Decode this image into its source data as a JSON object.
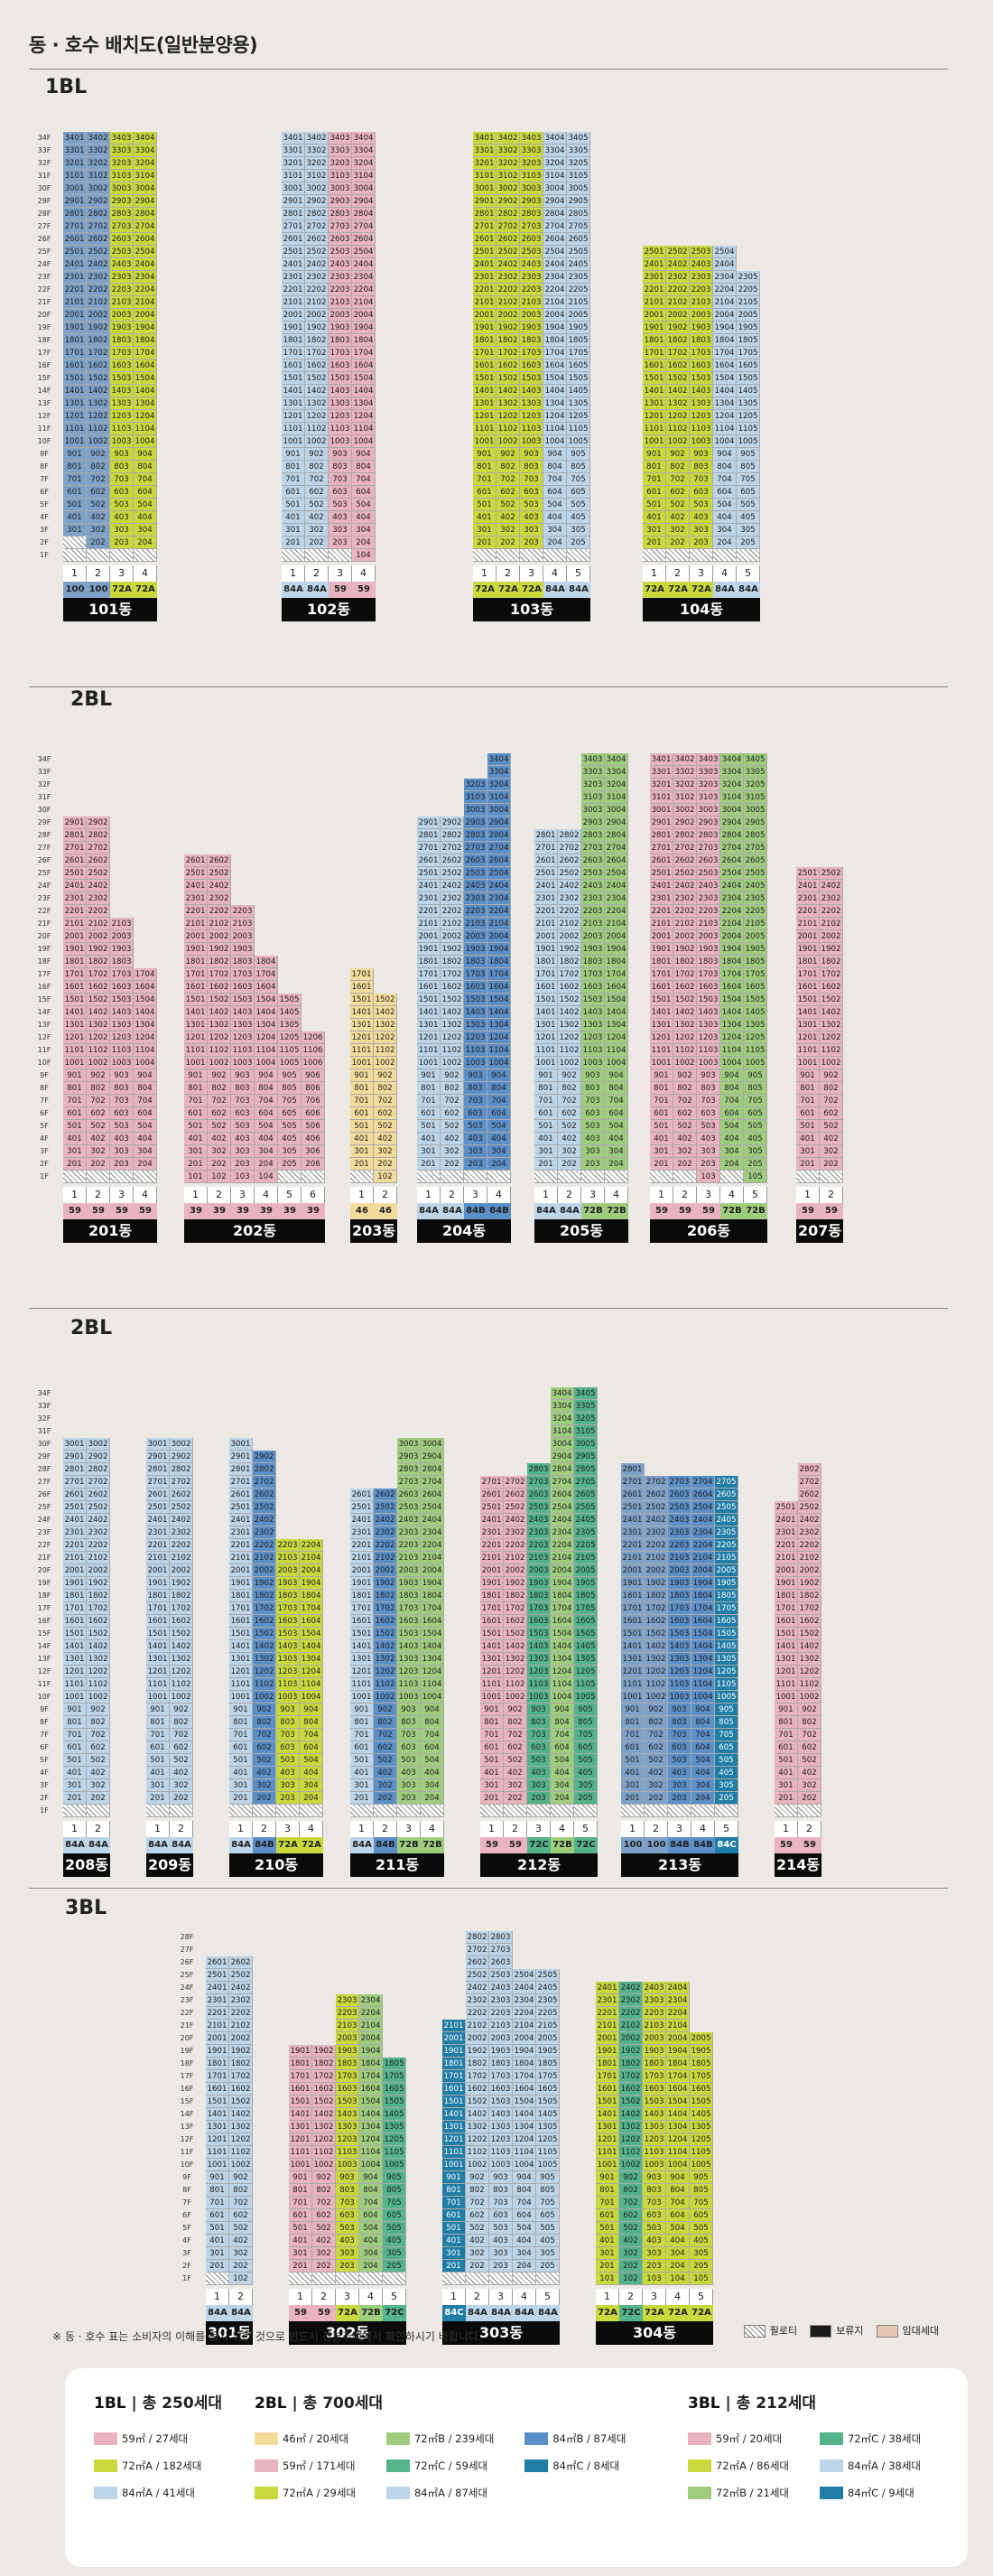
{
  "title": "동 · 호수 배치도(일반분양용)",
  "sections": [
    {
      "label": "1BL",
      "floors": 34,
      "buildings": [
        {
          "name": "101동",
          "lines": [
            "1",
            "2",
            "3",
            "4"
          ],
          "types": [
            "100",
            "100",
            "72A",
            "72A"
          ],
          "tops": [
            34,
            34,
            34,
            34
          ],
          "bottoms": [
            3,
            2,
            2,
            2
          ]
        },
        {
          "name": "102동",
          "lines": [
            "1",
            "2",
            "3",
            "4"
          ],
          "types": [
            "84A",
            "84A",
            "59",
            "59"
          ],
          "tops": [
            34,
            34,
            34,
            34
          ],
          "bottoms": [
            2,
            2,
            2,
            1
          ]
        },
        {
          "name": "103동",
          "lines": [
            "1",
            "2",
            "3",
            "4",
            "5"
          ],
          "types": [
            "72A",
            "72A",
            "72A",
            "84A",
            "84A"
          ],
          "tops": [
            34,
            34,
            34,
            34,
            34
          ],
          "bottoms": [
            2,
            2,
            2,
            2,
            2
          ]
        },
        {
          "name": "104동",
          "lines": [
            "1",
            "2",
            "3",
            "4",
            "5"
          ],
          "types": [
            "72A",
            "72A",
            "72A",
            "84A",
            "84A"
          ],
          "tops": [
            25,
            25,
            25,
            25,
            23
          ],
          "bottoms": [
            2,
            2,
            2,
            2,
            2
          ]
        }
      ]
    },
    {
      "label": "2BL",
      "floors": 34,
      "buildings": [
        {
          "name": "201동",
          "lines": [
            "1",
            "2",
            "3",
            "4"
          ],
          "types": [
            "59",
            "59",
            "59",
            "59"
          ],
          "tops": [
            29,
            29,
            21,
            17
          ],
          "bottoms": [
            2,
            2,
            2,
            2
          ]
        },
        {
          "name": "202동",
          "lines": [
            "1",
            "2",
            "3",
            "4",
            "5",
            "6"
          ],
          "types": [
            "39",
            "39",
            "39",
            "39",
            "39",
            "39"
          ],
          "tops": [
            26,
            26,
            22,
            18,
            15,
            12
          ],
          "bottoms": [
            1,
            1,
            1,
            1,
            2,
            2
          ]
        },
        {
          "name": "203동",
          "lines": [
            "1",
            "2"
          ],
          "types": [
            "46",
            "46"
          ],
          "tops": [
            17,
            15
          ],
          "bottoms": [
            2,
            1
          ]
        },
        {
          "name": "204동",
          "lines": [
            "1",
            "2",
            "3",
            "4"
          ],
          "types": [
            "84A",
            "84A",
            "84B",
            "84B"
          ],
          "tops": [
            29,
            29,
            32,
            34
          ],
          "bottoms": [
            2,
            2,
            2,
            2
          ]
        },
        {
          "name": "205동",
          "lines": [
            "1",
            "2",
            "3",
            "4"
          ],
          "types": [
            "84A",
            "84A",
            "72B",
            "72B"
          ],
          "tops": [
            28,
            28,
            34,
            34
          ],
          "bottoms": [
            2,
            2,
            2,
            2
          ]
        },
        {
          "name": "206동",
          "lines": [
            "1",
            "2",
            "3",
            "4",
            "5"
          ],
          "types": [
            "59",
            "59",
            "59",
            "72B",
            "72B"
          ],
          "tops": [
            34,
            34,
            34,
            34,
            34
          ],
          "bottoms": [
            2,
            2,
            1,
            2,
            1
          ]
        },
        {
          "name": "207동",
          "lines": [
            "1",
            "2"
          ],
          "types": [
            "59",
            "59"
          ],
          "tops": [
            25,
            25
          ],
          "bottoms": [
            2,
            2
          ]
        }
      ]
    },
    {
      "label": "2BL",
      "floors": 34,
      "buildings": [
        {
          "name": "208동",
          "lines": [
            "1",
            "2"
          ],
          "types": [
            "84A",
            "84A"
          ],
          "tops": [
            30,
            30
          ],
          "bottoms": [
            2,
            2
          ]
        },
        {
          "name": "209동",
          "lines": [
            "1",
            "2"
          ],
          "types": [
            "84A",
            "84A"
          ],
          "tops": [
            30,
            30
          ],
          "bottoms": [
            2,
            2
          ]
        },
        {
          "name": "210동",
          "lines": [
            "1",
            "2",
            "3",
            "4"
          ],
          "types": [
            "84A",
            "84B",
            "72A",
            "72A"
          ],
          "tops": [
            30,
            29,
            22,
            22
          ],
          "bottoms": [
            2,
            2,
            2,
            2
          ]
        },
        {
          "name": "211동",
          "lines": [
            "1",
            "2",
            "3",
            "4"
          ],
          "types": [
            "84A",
            "84B",
            "72B",
            "72B"
          ],
          "tops": [
            26,
            26,
            30,
            30
          ],
          "bottoms": [
            2,
            2,
            2,
            2
          ]
        },
        {
          "name": "212동",
          "lines": [
            "1",
            "2",
            "3",
            "4",
            "5"
          ],
          "types": [
            "59",
            "59",
            "72C",
            "72B",
            "72C"
          ],
          "tops": [
            27,
            27,
            28,
            34,
            34
          ],
          "bottoms": [
            2,
            2,
            2,
            2,
            2
          ]
        },
        {
          "name": "213동",
          "lines": [
            "1",
            "2",
            "3",
            "4",
            "5"
          ],
          "types": [
            "100",
            "100",
            "84B",
            "84B",
            "84C"
          ],
          "tops": [
            28,
            27,
            27,
            27,
            27
          ],
          "bottoms": [
            2,
            2,
            2,
            2,
            2
          ]
        },
        {
          "name": "214동",
          "lines": [
            "1",
            "2"
          ],
          "types": [
            "59",
            "59"
          ],
          "tops": [
            25,
            28
          ],
          "bottoms": [
            2,
            2
          ]
        }
      ]
    },
    {
      "label": "3BL",
      "floors": 28,
      "buildings": [
        {
          "name": "301동",
          "lines": [
            "1",
            "2"
          ],
          "types": [
            "84A",
            "84A"
          ],
          "tops": [
            26,
            26
          ],
          "bottoms": [
            2,
            1
          ]
        },
        {
          "name": "302동",
          "lines": [
            "1",
            "2",
            "3",
            "4",
            "5"
          ],
          "types": [
            "59",
            "59",
            "72A",
            "72B",
            "72C"
          ],
          "tops": [
            19,
            19,
            23,
            23,
            18
          ],
          "bottoms": [
            2,
            2,
            2,
            2,
            2
          ]
        },
        {
          "name": "303동",
          "lines": [
            "1",
            "2",
            "3",
            "4",
            "5"
          ],
          "types": [
            "84C",
            "84A",
            "84A",
            "84A",
            "84A"
          ],
          "tops": [
            21,
            28,
            28,
            25,
            25
          ],
          "bottoms": [
            2,
            2,
            2,
            2,
            2
          ]
        },
        {
          "name": "304동",
          "lines": [
            "1",
            "2",
            "3",
            "4",
            "5"
          ],
          "types": [
            "72A",
            "72C",
            "72A",
            "72A",
            "72A"
          ],
          "tops": [
            24,
            24,
            24,
            24,
            20
          ],
          "bottoms": [
            1,
            1,
            1,
            1,
            1
          ]
        }
      ]
    }
  ],
  "note": "※ 동 · 호수 표는 소비자의 이해를 돕기 위한 것으로 반드시 견본주택에서 확인하시기 바랍니다.",
  "keys": [
    {
      "label": "필로티",
      "color": "#ffffff",
      "icon": "hatch-icon"
    },
    {
      "label": "보류지",
      "color": "#1b1b1b",
      "icon": "reserved-swatch"
    },
    {
      "label": "임대세대",
      "color": "#e4c5b0",
      "icon": "rental-swatch"
    }
  ],
  "legend": [
    {
      "title": "1BL",
      "total": "총 250세대",
      "columns": [
        [
          {
            "label": "59㎡ / 27세대",
            "color": "#e9b3bf"
          },
          {
            "label": "72㎡A / 182세대",
            "color": "#c9d93c"
          },
          {
            "label": "84㎡A / 41세대",
            "color": "#bdd5e8"
          }
        ]
      ]
    },
    {
      "title": "2BL",
      "total": "총 700세대",
      "columns": [
        [
          {
            "label": "46㎡ / 20세대",
            "color": "#f3dc9b"
          },
          {
            "label": "59㎡ / 171세대",
            "color": "#e9b3bf"
          },
          {
            "label": "72㎡A / 29세대",
            "color": "#c9d93c"
          }
        ],
        [
          {
            "label": "72㎡B / 239세대",
            "color": "#9fcd7e"
          },
          {
            "label": "72㎡C / 59세대",
            "color": "#53b38a"
          },
          {
            "label": "84㎡A / 87세대",
            "color": "#bdd5e8"
          }
        ],
        [
          {
            "label": "84㎡B / 87세대",
            "color": "#5b8fc8"
          },
          {
            "label": "84㎡C / 8세대",
            "color": "#1f7da6"
          }
        ]
      ]
    },
    {
      "title": "3BL",
      "total": "총 212세대",
      "columns": [
        [
          {
            "label": "59㎡ / 20세대",
            "color": "#e9b3bf"
          },
          {
            "label": "72㎡A / 86세대",
            "color": "#c9d93c"
          },
          {
            "label": "72㎡B / 21세대",
            "color": "#9fcd7e"
          }
        ],
        [
          {
            "label": "72㎡C / 38세대",
            "color": "#53b38a"
          },
          {
            "label": "84㎡A / 38세대",
            "color": "#bdd5e8"
          },
          {
            "label": "84㎡C / 9세대",
            "color": "#1f7da6"
          }
        ]
      ]
    }
  ]
}
